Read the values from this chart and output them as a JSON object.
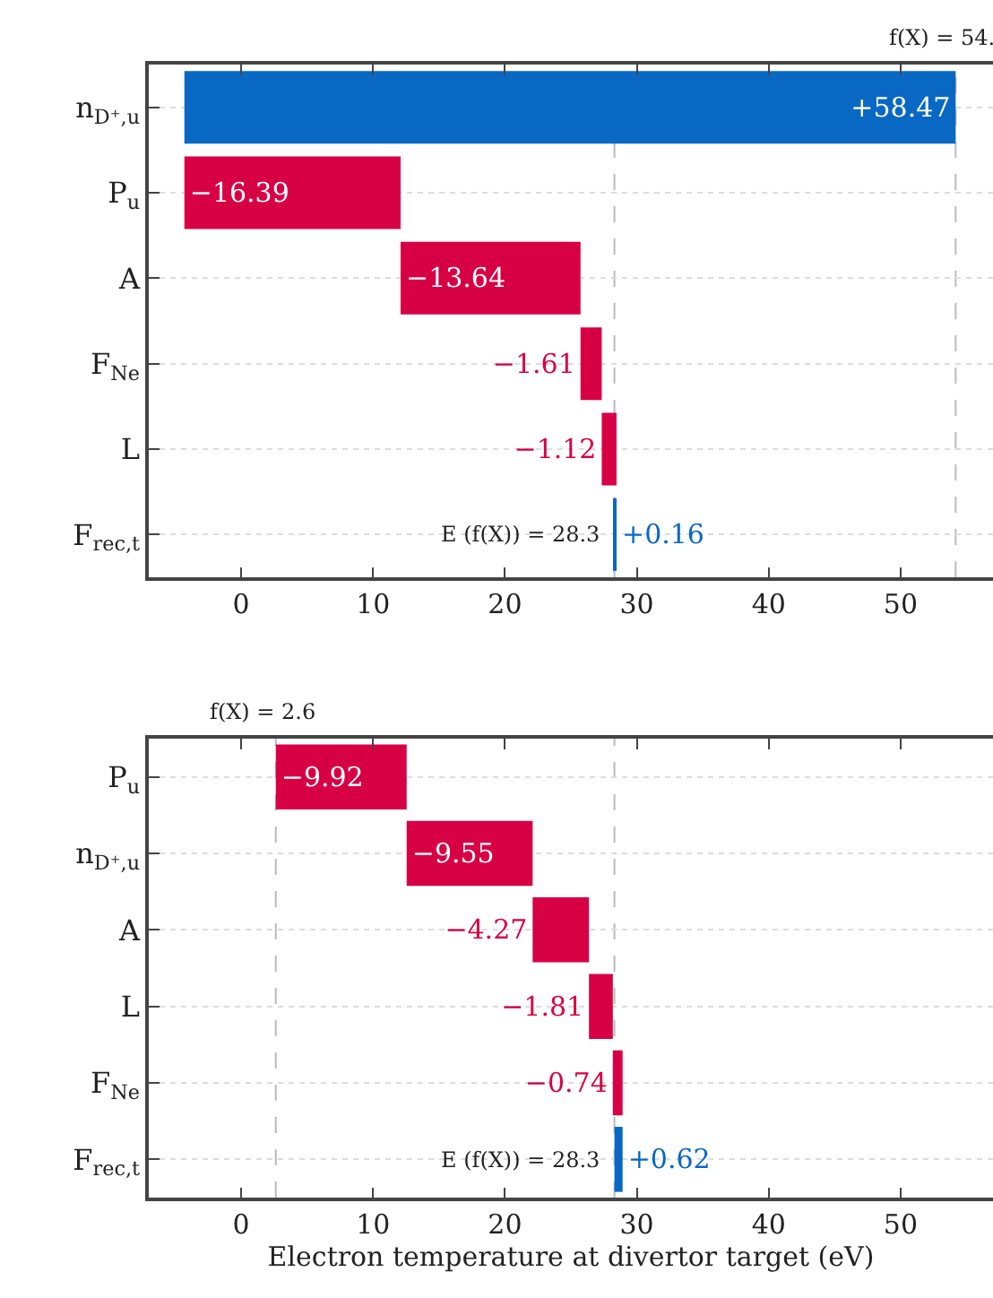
{
  "chart_data": [
    {
      "type": "bar",
      "orientation": "horizontal",
      "categories": [
        "n$_{D⁺,u}$",
        "P$_{u}$",
        "A",
        "F$_{Ne}$",
        "L",
        "F$_{rec,t}$"
      ],
      "values": [
        58.47,
        -16.39,
        -13.64,
        -1.61,
        -1.12,
        0.16
      ],
      "base": [
        -4.3,
        12.09,
        25.73,
        27.34,
        28.46,
        28.3
      ],
      "colors": [
        "#0868c4",
        "#d80045",
        "#d80045",
        "#d80045",
        "#d80045",
        "#0868c4"
      ],
      "value_labels": [
        "+58.47",
        "−16.39",
        "−13.64",
        "−1.61",
        "−1.12",
        "+0.16"
      ],
      "xlim": [
        -7,
        57
      ],
      "xticks": [
        0,
        10,
        20,
        30,
        40,
        50
      ],
      "grid": "y",
      "ref_lines": [
        {
          "axis": "x",
          "value": 28.3,
          "color": "#bbbbbb",
          "line_style": "dashed"
        },
        {
          "axis": "x",
          "value": 54.17,
          "color": "#bbbbbb",
          "line_style": "dashed",
          "label": "f(X) = 54."
        }
      ],
      "annotations": [
        {
          "text": "E (f(X)) = 28.3",
          "x": 28.3,
          "y": "F$_{rec,t}$"
        }
      ]
    },
    {
      "type": "bar",
      "orientation": "horizontal",
      "categories": [
        "P$_{u}$",
        "n$_{D⁺,u}$",
        "A",
        "L",
        "F$_{Ne}$",
        "F$_{rec,t}$"
      ],
      "values": [
        -9.92,
        -9.55,
        -4.27,
        -1.81,
        -0.74,
        0.62
      ],
      "base": [
        12.55,
        22.1,
        26.37,
        28.18,
        28.92,
        28.3
      ],
      "colors": [
        "#d80045",
        "#d80045",
        "#d80045",
        "#d80045",
        "#d80045",
        "#0868c4"
      ],
      "value_labels": [
        "−9.92",
        "−9.55",
        "−4.27",
        "−1.81",
        "−0.74",
        "+0.62"
      ],
      "xlim": [
        -7,
        57
      ],
      "xticks": [
        0,
        10,
        20,
        30,
        40,
        50
      ],
      "grid": "y",
      "xlabel": "Electron temperature at divertor target (eV)",
      "ref_lines": [
        {
          "axis": "x",
          "value": 28.3,
          "color": "#bbbbbb",
          "line_style": "dashed"
        },
        {
          "axis": "x",
          "value": 2.63,
          "color": "#bbbbbb",
          "line_style": "dashed",
          "label": "f(X) = 2.6"
        }
      ],
      "annotations": [
        {
          "text": "E (f(X)) = 28.3",
          "x": 28.3,
          "y": "F$_{rec,t}$"
        }
      ]
    }
  ]
}
